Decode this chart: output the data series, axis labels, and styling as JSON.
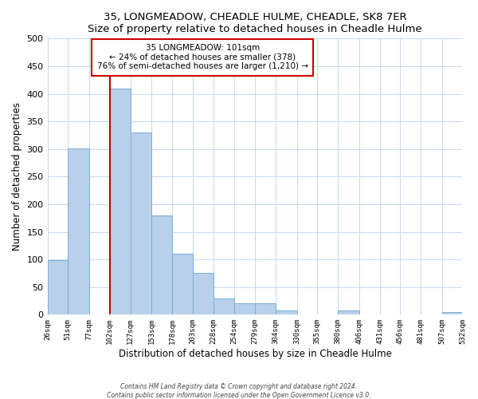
{
  "title": "35, LONGMEADOW, CHEADLE HULME, CHEADLE, SK8 7ER",
  "subtitle": "Size of property relative to detached houses in Cheadle Hulme",
  "xlabel": "Distribution of detached houses by size in Cheadle Hulme",
  "ylabel": "Number of detached properties",
  "bin_edges": [
    26,
    51,
    77,
    102,
    127,
    153,
    178,
    203,
    228,
    254,
    279,
    304,
    330,
    355,
    380,
    406,
    431,
    456,
    481,
    507,
    532
  ],
  "bar_heights": [
    99,
    301,
    0,
    410,
    330,
    179,
    111,
    76,
    30,
    20,
    20,
    8,
    0,
    0,
    7,
    0,
    0,
    0,
    0,
    5
  ],
  "bar_color": "#b8d0ea",
  "bar_edge_color": "#7aadd4",
  "highlight_x": 102,
  "annotation_title": "35 LONGMEADOW: 101sqm",
  "annotation_line1": "← 24% of detached houses are smaller (378)",
  "annotation_line2": "76% of semi-detached houses are larger (1,210) →",
  "vline_color": "#cc0000",
  "annotation_box_edge": "#cc0000",
  "footer1": "Contains HM Land Registry data © Crown copyright and database right 2024.",
  "footer2": "Contains public sector information licensed under the Open Government Licence v3.0.",
  "ylim": [
    0,
    500
  ],
  "xlim": [
    26,
    532
  ],
  "tick_labels": [
    "26sqm",
    "51sqm",
    "77sqm",
    "102sqm",
    "127sqm",
    "153sqm",
    "178sqm",
    "203sqm",
    "228sqm",
    "254sqm",
    "279sqm",
    "304sqm",
    "330sqm",
    "355sqm",
    "380sqm",
    "406sqm",
    "431sqm",
    "456sqm",
    "481sqm",
    "507sqm",
    "532sqm"
  ],
  "yticks": [
    0,
    50,
    100,
    150,
    200,
    250,
    300,
    350,
    400,
    450,
    500
  ],
  "title_fontsize": 10,
  "subtitle_fontsize": 9
}
